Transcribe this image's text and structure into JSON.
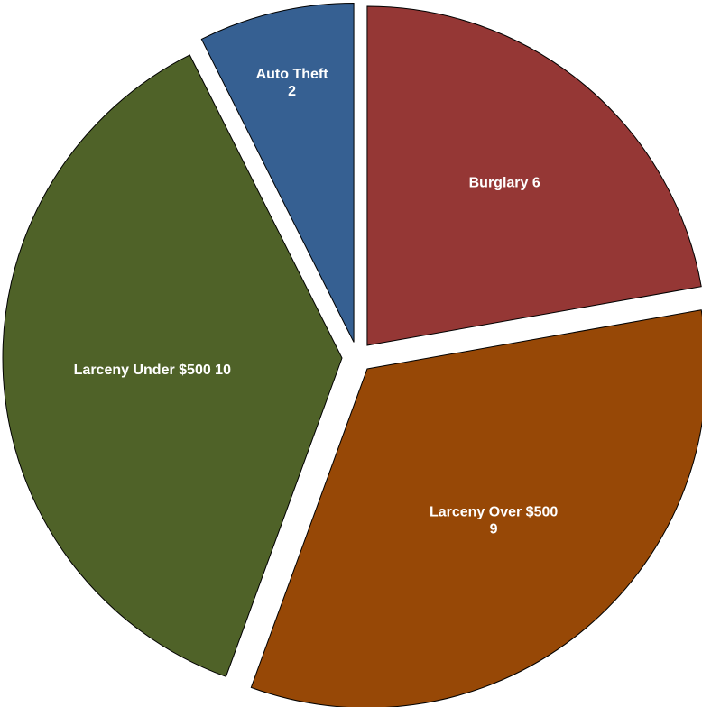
{
  "chart_data": {
    "type": "pie",
    "title": "",
    "slices": [
      {
        "name": "Burglary",
        "value": 6,
        "color": "#953735",
        "label_lines": [
          "Burglary   6"
        ]
      },
      {
        "name": "Larceny Over $500",
        "value": 9,
        "color": "#974806",
        "label_lines": [
          "Larceny Over $500",
          "9"
        ]
      },
      {
        "name": "Larceny Under $500",
        "value": 10,
        "color": "#4F6228",
        "label_lines": [
          "Larceny Under $500 10"
        ]
      },
      {
        "name": "Auto Theft",
        "value": 2,
        "color": "#366092",
        "label_lines": [
          "Auto Theft",
          "2"
        ]
      }
    ],
    "exploded": true,
    "legend": "none",
    "data_labels": "inside"
  }
}
